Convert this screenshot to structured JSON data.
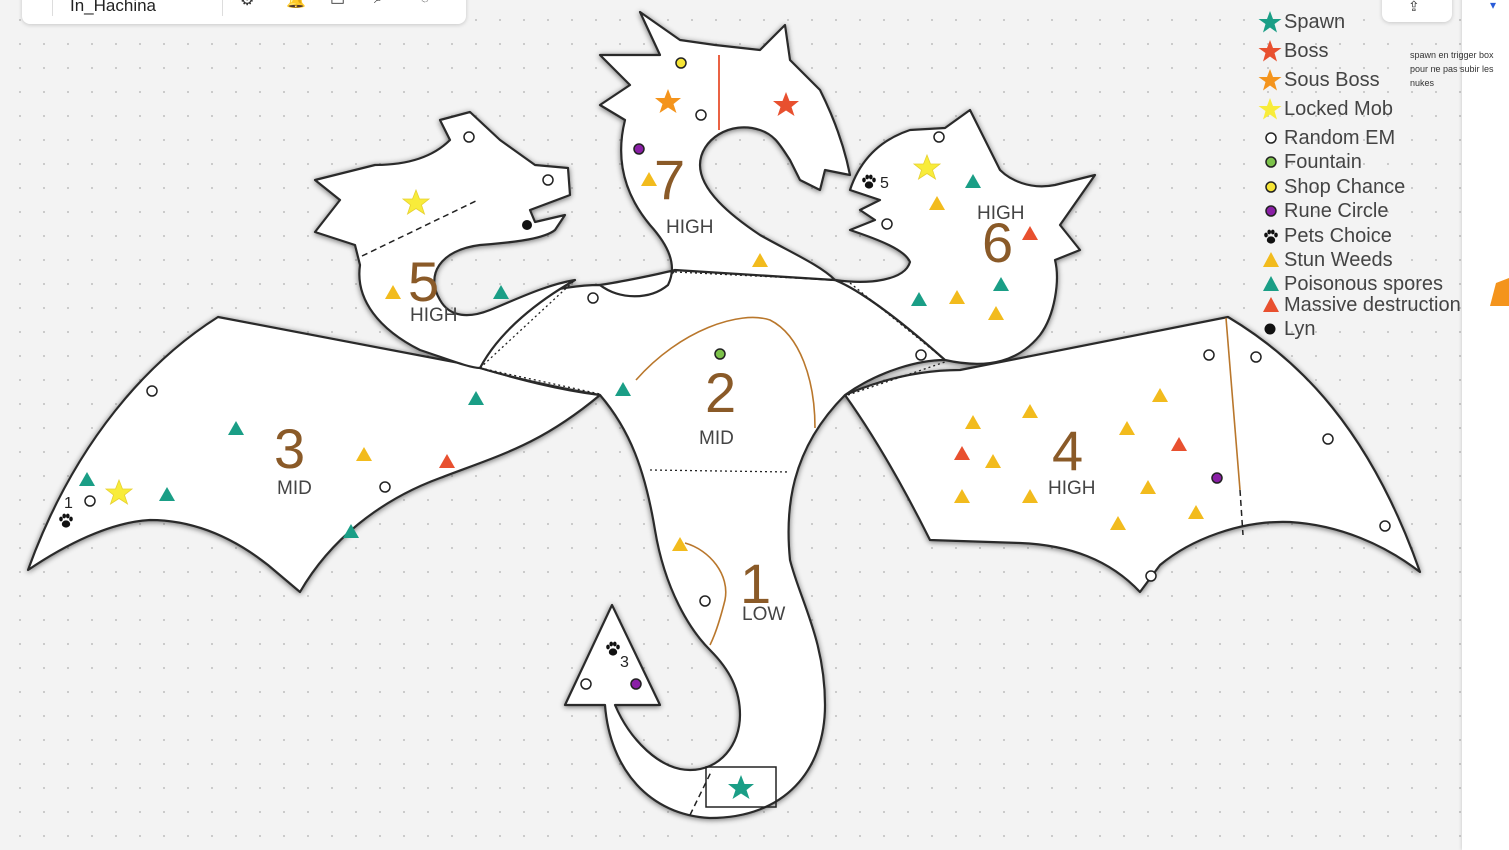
{
  "toolbar": {
    "board_title": "In_Hachina",
    "icons": [
      "gear-icon",
      "bell-icon",
      "layout-icon",
      "search-icon",
      "chat-icon"
    ],
    "share_icon": "share-icon"
  },
  "legend": {
    "items": [
      {
        "symbol": "star",
        "color": "#1a9e86",
        "label": "Spawn"
      },
      {
        "symbol": "star",
        "color": "#e8502f",
        "label": "Boss"
      },
      {
        "symbol": "star",
        "color": "#f4941c",
        "label": "Sous Boss"
      },
      {
        "symbol": "star",
        "color": "#f8ec3a",
        "label": "Locked Mob"
      },
      {
        "symbol": "circle",
        "color": "#ffffff",
        "label": "Random EM"
      },
      {
        "symbol": "circle",
        "color": "#7cc24a",
        "label": "Fountain"
      },
      {
        "symbol": "circle",
        "color": "#f6e536",
        "label": "Shop Chance"
      },
      {
        "symbol": "circle",
        "color": "#8a1fa6",
        "label": "Rune Circle"
      },
      {
        "symbol": "paw",
        "color": "#111111",
        "label": "Pets Choice"
      },
      {
        "symbol": "triangle",
        "color": "#f2bb1d",
        "label": "Stun Weeds"
      },
      {
        "symbol": "triangle",
        "color": "#1a9e86",
        "label": "Poisonous spores"
      },
      {
        "symbol": "triangle",
        "color": "#e8502f",
        "label": "Massive destruction"
      },
      {
        "symbol": "circle",
        "color": "#111111",
        "label": "Lyn"
      }
    ]
  },
  "note": "spawn en trigger box pour ne pas subir les nukes",
  "zones": [
    {
      "number": "1",
      "level": "LOW"
    },
    {
      "number": "2",
      "level": "MID"
    },
    {
      "number": "3",
      "level": "MID"
    },
    {
      "number": "4",
      "level": "HIGH"
    },
    {
      "number": "5",
      "level": "HIGH"
    },
    {
      "number": "6",
      "level": "HIGH"
    },
    {
      "number": "7",
      "level": "HIGH"
    }
  ],
  "pet_markers": [
    "1",
    "3",
    "5"
  ],
  "colors": {
    "zone_number": "#8a5a28",
    "outline": "#2a2a2a",
    "path_line": "#b9772c",
    "boss_line": "#e8502f"
  }
}
